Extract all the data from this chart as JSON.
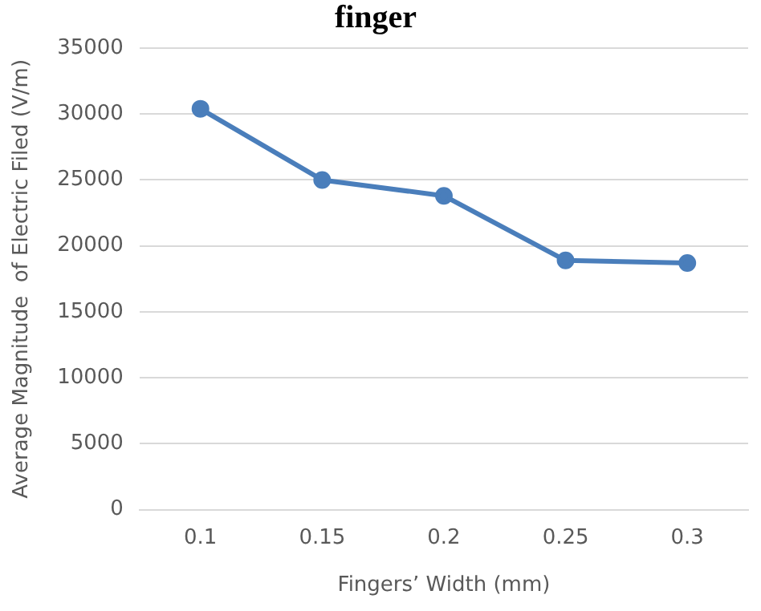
{
  "chart_data": {
    "type": "line",
    "title": "finger",
    "xlabel": "Fingers’ Width (mm)",
    "ylabel": "Average Magnitude  of Electric Filed (V/m)",
    "categories": [
      "0.1",
      "0.15",
      "0.2",
      "0.25",
      "0.3"
    ],
    "series": [
      {
        "color": "#4a7ebb",
        "values": [
          30400,
          25000,
          23800,
          18900,
          18700
        ]
      }
    ],
    "ylim": [
      0,
      35000
    ],
    "yticks": [
      0,
      5000,
      10000,
      15000,
      20000,
      25000,
      30000,
      35000
    ],
    "grid": "y",
    "marker": "circle",
    "line_style": "solid"
  }
}
